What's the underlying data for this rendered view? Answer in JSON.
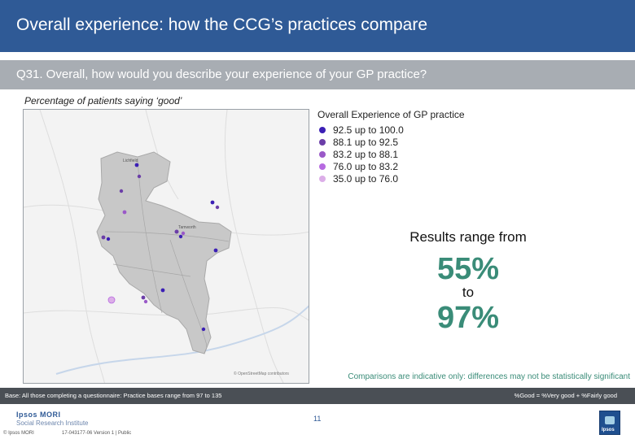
{
  "header": {
    "title": "Overall experience: how the CCG’s practices compare"
  },
  "question": {
    "text": "Q31. Overall, how would you describe your experience of your GP practice?"
  },
  "subtitle": "Percentage of patients saying ‘good’",
  "map": {
    "credit": "© OpenStreetMap contributors",
    "place_labels": [
      "Lichfield",
      "Tamworth"
    ]
  },
  "legend": {
    "title": "Overall Experience of GP practice",
    "items": [
      {
        "range": "92.5 up to 100.0",
        "color": "#3b1fb5"
      },
      {
        "range": "88.1 up to   92.5",
        "color": "#6b3ea8"
      },
      {
        "range": "83.2 up to   88.1",
        "color": "#9a59c8"
      },
      {
        "range": "76.0 up to   83.2",
        "color": "#b66ae0"
      },
      {
        "range": "35.0 up to   76.0",
        "color": "#dcaee8"
      }
    ]
  },
  "results": {
    "lead": "Results range from",
    "low": "55%",
    "to": "to",
    "high": "97%"
  },
  "comparison_note": "Comparisons are indicative only: differences may not be statistically significant",
  "base": {
    "text": "Base: All those completing a questionnaire: Practice bases range from 97 to 135",
    "good_definition": "%Good = %Very good + %Fairly good"
  },
  "footer": {
    "logo_line1": "Ipsos MORI",
    "logo_line2": "Social Research Institute",
    "copyright": "© Ipsos MORI",
    "job_ref": "17-043177-06 Version 1 | Public",
    "page_number": "11",
    "ipsos_logo_text": "Ipsos"
  }
}
